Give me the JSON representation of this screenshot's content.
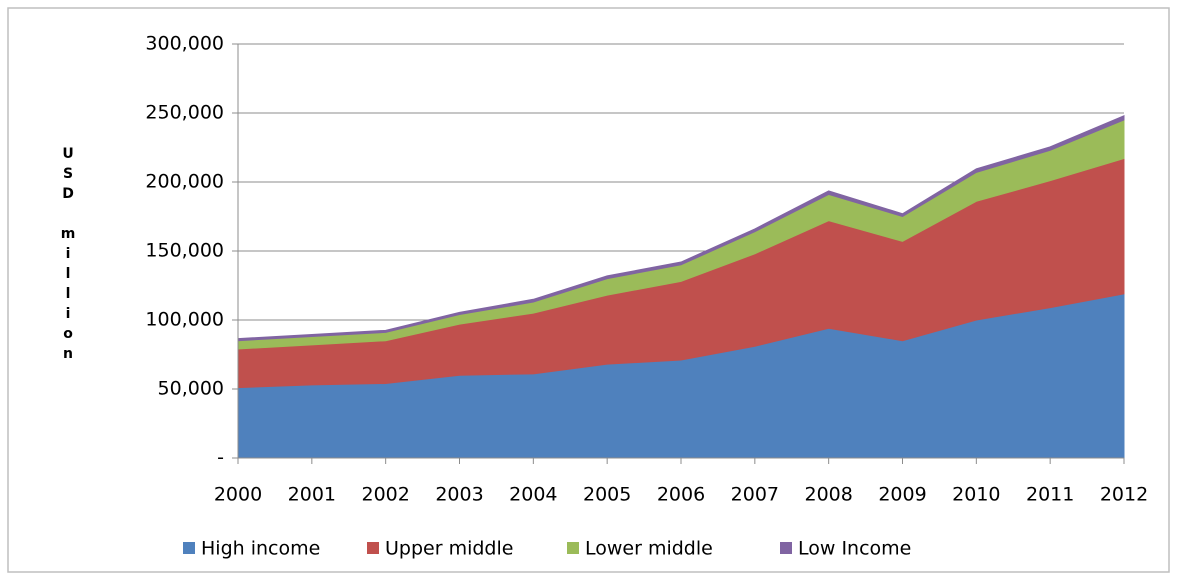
{
  "chart_data": {
    "type": "stacked_area",
    "y_label": "USD million",
    "categories": [
      "2000",
      "2001",
      "2002",
      "2003",
      "2004",
      "2005",
      "2006",
      "2007",
      "2008",
      "2009",
      "2010",
      "2011",
      "2012"
    ],
    "series": [
      {
        "name": "High income",
        "color": "#4f81bd",
        "values": [
          51000,
          53000,
          54000,
          60000,
          61000,
          68000,
          71000,
          81000,
          94000,
          85000,
          100000,
          109000,
          119000
        ]
      },
      {
        "name": "Upper middle",
        "color": "#c0504d",
        "values": [
          28000,
          29000,
          31000,
          37000,
          44000,
          50000,
          57000,
          67000,
          78000,
          72000,
          86000,
          92000,
          98000
        ]
      },
      {
        "name": "Lower middle",
        "color": "#9bbb59",
        "values": [
          6000,
          6000,
          6000,
          7000,
          8000,
          12000,
          12000,
          16000,
          19000,
          18000,
          21000,
          22000,
          28000
        ]
      },
      {
        "name": "Low Income",
        "color": "#8064a2",
        "values": [
          1500,
          1500,
          1500,
          1500,
          2000,
          2000,
          2000,
          2000,
          2500,
          2000,
          2500,
          2500,
          3000
        ]
      }
    ],
    "ylim": [
      0,
      300000
    ],
    "yticks": [
      {
        "value": 0,
        "label": "-"
      },
      {
        "value": 50000,
        "label": "50,000"
      },
      {
        "value": 100000,
        "label": "100,000"
      },
      {
        "value": 150000,
        "label": "150,000"
      },
      {
        "value": 200000,
        "label": "200,000"
      },
      {
        "value": 250000,
        "label": "250,000"
      },
      {
        "value": 300000,
        "label": "300,000"
      }
    ],
    "grid": true,
    "legend": "bottom"
  }
}
